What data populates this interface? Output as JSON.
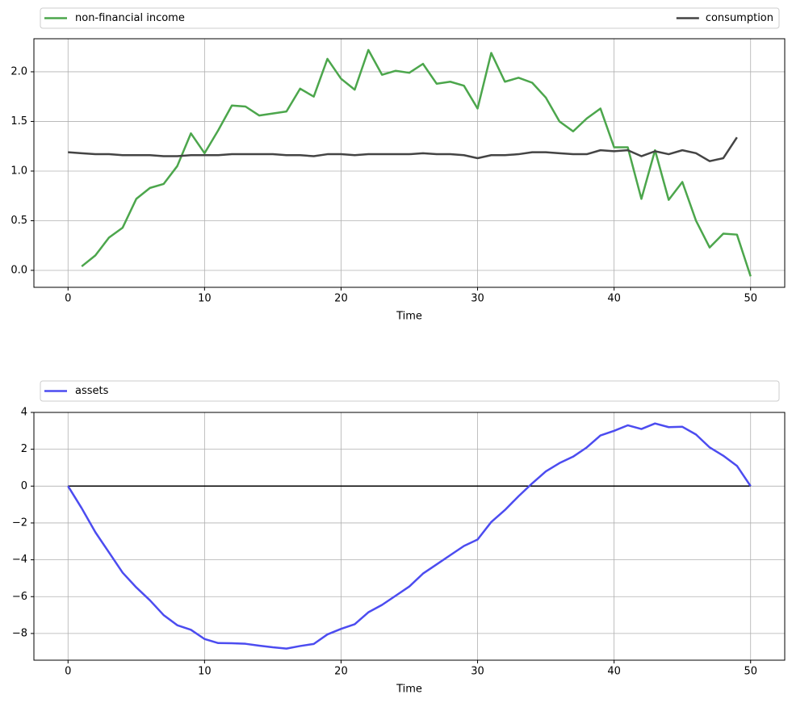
{
  "chart_data": [
    {
      "type": "line",
      "xlabel": "Time",
      "xlim": [
        -2.5,
        52.5
      ],
      "xticks": [
        0,
        10,
        20,
        30,
        40,
        50
      ],
      "ylim": [
        -0.171,
        2.333
      ],
      "yticks": [
        {
          "value": 0,
          "label": "0.0"
        },
        0.5,
        {
          "value": 1,
          "label": "1.0"
        },
        1.5,
        {
          "value": 2,
          "label": "2.0"
        }
      ],
      "grid": true,
      "legend": "top-expand",
      "series": [
        {
          "name": "non-financial income",
          "color": "#4ca64c",
          "x": [
            1,
            2,
            3,
            4,
            5,
            6,
            7,
            8,
            9,
            10,
            11,
            12,
            13,
            14,
            15,
            16,
            17,
            18,
            19,
            20,
            21,
            22,
            23,
            24,
            25,
            26,
            27,
            28,
            29,
            30,
            31,
            32,
            33,
            34,
            35,
            36,
            37,
            38,
            39,
            40,
            41,
            42,
            43,
            44,
            45,
            46,
            47,
            48,
            49,
            50
          ],
          "values": [
            0.04,
            0.15,
            0.33,
            0.43,
            0.72,
            0.83,
            0.87,
            1.05,
            1.38,
            1.18,
            1.41,
            1.66,
            1.65,
            1.56,
            1.58,
            1.6,
            1.83,
            1.75,
            2.13,
            1.93,
            1.82,
            2.22,
            1.97,
            2.01,
            1.99,
            2.08,
            1.88,
            1.9,
            1.86,
            1.63,
            2.19,
            1.9,
            1.94,
            1.89,
            1.74,
            1.5,
            1.4,
            1.53,
            1.63,
            1.24,
            1.24,
            0.72,
            1.21,
            0.71,
            0.89,
            0.5,
            0.23,
            0.37,
            0.36,
            -0.06
          ]
        },
        {
          "name": "consumption",
          "color": "#444444",
          "x": [
            0,
            1,
            2,
            3,
            4,
            5,
            6,
            7,
            8,
            9,
            10,
            11,
            12,
            13,
            14,
            15,
            16,
            17,
            18,
            19,
            20,
            21,
            22,
            23,
            24,
            25,
            26,
            27,
            28,
            29,
            30,
            31,
            32,
            33,
            34,
            35,
            36,
            37,
            38,
            39,
            40,
            41,
            42,
            43,
            44,
            45,
            46,
            47,
            48,
            49
          ],
          "values": [
            1.19,
            1.18,
            1.17,
            1.17,
            1.16,
            1.16,
            1.16,
            1.15,
            1.15,
            1.16,
            1.16,
            1.16,
            1.17,
            1.17,
            1.17,
            1.17,
            1.16,
            1.16,
            1.15,
            1.17,
            1.17,
            1.16,
            1.17,
            1.17,
            1.17,
            1.17,
            1.18,
            1.17,
            1.17,
            1.16,
            1.13,
            1.16,
            1.16,
            1.17,
            1.19,
            1.19,
            1.18,
            1.17,
            1.17,
            1.21,
            1.2,
            1.21,
            1.15,
            1.2,
            1.17,
            1.21,
            1.18,
            1.1,
            1.13,
            1.34
          ]
        }
      ]
    },
    {
      "type": "line",
      "xlabel": "Time",
      "xlim": [
        -2.5,
        52.5
      ],
      "xticks": [
        0,
        10,
        20,
        30,
        40,
        50
      ],
      "ylim": [
        -9.45,
        4.0
      ],
      "yticks": [
        {
          "value": -8,
          "label": "−8"
        },
        {
          "value": -6,
          "label": "−6"
        },
        {
          "value": -4,
          "label": "−4"
        },
        {
          "value": -2,
          "label": "−2"
        },
        0,
        2,
        4
      ],
      "grid": true,
      "legend": "top-expand",
      "hline": {
        "y": 0,
        "x": [
          0,
          50
        ],
        "color": "#000000"
      },
      "series": [
        {
          "name": "assets",
          "color": "#4c4cf0",
          "x": [
            0,
            1,
            2,
            3,
            4,
            5,
            6,
            7,
            8,
            9,
            10,
            11,
            12,
            13,
            14,
            15,
            16,
            17,
            18,
            19,
            20,
            21,
            22,
            23,
            24,
            25,
            26,
            27,
            28,
            29,
            30,
            31,
            32,
            33,
            34,
            35,
            36,
            37,
            38,
            39,
            40,
            41,
            42,
            43,
            44,
            45,
            46,
            47,
            48,
            49,
            50
          ],
          "values": [
            0,
            -1.2,
            -2.5,
            -3.6,
            -4.7,
            -5.5,
            -6.2,
            -7.0,
            -7.55,
            -7.8,
            -8.3,
            -8.52,
            -8.53,
            -8.56,
            -8.66,
            -8.75,
            -8.82,
            -8.68,
            -8.57,
            -8.05,
            -7.75,
            -7.5,
            -6.85,
            -6.45,
            -5.95,
            -5.45,
            -4.75,
            -4.25,
            -3.75,
            -3.25,
            -2.9,
            -1.95,
            -1.3,
            -0.55,
            0.15,
            0.8,
            1.25,
            1.6,
            2.1,
            2.75,
            3.0,
            3.3,
            3.1,
            3.4,
            3.2,
            3.22,
            2.8,
            2.1,
            1.65,
            1.1,
            0
          ]
        }
      ]
    }
  ]
}
